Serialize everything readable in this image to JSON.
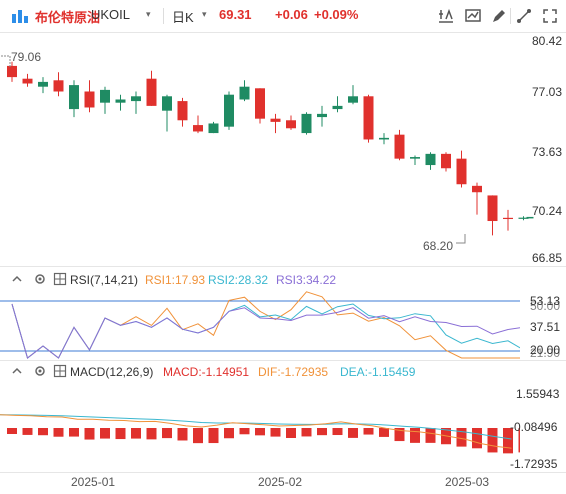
{
  "toolbar": {
    "symbol_name": "布伦特原油",
    "symbol_code": "UKOIL",
    "timeframe": "日K",
    "price": "69.31",
    "change": "+0.06",
    "change_pct": "+0.09%",
    "caret": "▾",
    "icons": [
      "logo-icon",
      "settings-icon",
      "layout-icon",
      "draw-icon",
      "drawing-tools-icon",
      "fullscreen-icon",
      "close-icon"
    ]
  },
  "main": {
    "y_ticks": [
      "80.42",
      "77.03",
      "73.63",
      "70.24",
      "66.85"
    ],
    "high_label": "79.06",
    "low_label": "68.20",
    "candles": [
      [
        78.8,
        79.06,
        77.8,
        78.1
      ],
      [
        78.0,
        78.3,
        77.5,
        77.7
      ],
      [
        77.5,
        78.1,
        77.1,
        77.8
      ],
      [
        77.9,
        78.4,
        76.9,
        77.2
      ],
      [
        76.1,
        77.9,
        75.6,
        77.6
      ],
      [
        77.2,
        77.9,
        75.9,
        76.2
      ],
      [
        76.5,
        77.5,
        75.8,
        77.3
      ],
      [
        76.5,
        77.0,
        76.0,
        76.7
      ],
      [
        76.6,
        77.2,
        75.8,
        76.9
      ],
      [
        78.0,
        78.5,
        76.3,
        76.3
      ],
      [
        76.0,
        77.0,
        74.7,
        76.9
      ],
      [
        76.6,
        76.8,
        75.0,
        75.4
      ],
      [
        75.1,
        75.7,
        74.6,
        74.7
      ],
      [
        74.6,
        75.3,
        74.6,
        75.2
      ],
      [
        75.0,
        77.2,
        74.8,
        77.0
      ],
      [
        76.7,
        77.9,
        76.6,
        77.5
      ],
      [
        77.4,
        77.4,
        75.2,
        75.5
      ],
      [
        75.5,
        75.8,
        74.6,
        75.3
      ],
      [
        75.4,
        75.7,
        74.8,
        74.9
      ],
      [
        74.6,
        75.9,
        74.5,
        75.8
      ],
      [
        75.6,
        76.3,
        75.0,
        75.8
      ],
      [
        76.1,
        76.9,
        75.9,
        76.3
      ],
      [
        76.5,
        77.6,
        76.4,
        76.9
      ],
      [
        76.9,
        77.0,
        74.0,
        74.2
      ],
      [
        74.2,
        74.6,
        73.9,
        74.3
      ],
      [
        74.5,
        74.8,
        72.9,
        73.0
      ],
      [
        73.0,
        73.2,
        72.6,
        73.1
      ],
      [
        72.6,
        73.4,
        72.3,
        73.3
      ],
      [
        73.3,
        73.4,
        72.2,
        72.4
      ],
      [
        73.0,
        73.5,
        71.2,
        71.4
      ],
      [
        71.3,
        71.5,
        69.5,
        70.9
      ],
      [
        70.7,
        70.7,
        68.2,
        69.1
      ],
      [
        69.3,
        69.8,
        68.5,
        69.25
      ],
      [
        69.25,
        69.4,
        69.15,
        69.31
      ]
    ]
  },
  "rsi": {
    "label": "RSI(7,14,21)",
    "rsi1": "RSI1:17.93",
    "rsi2": "RSI2:28.32",
    "rsi3": "RSI3:34.22",
    "tick_top": "53.13",
    "tick_top2": "50.00",
    "tick_mid": "37.51",
    "tick_low": "20.00",
    "tick_low2": "21.90",
    "colors": {
      "rsi1": "#f0923a",
      "rsi2": "#3ab7cf",
      "rsi3": "#8a6fd6"
    }
  },
  "macd": {
    "label": "MACD(12,26,9)",
    "macd": "MACD:-1.14951",
    "dif": "DIF:-1.72935",
    "dea": "DEA:-1.15459",
    "ticks": [
      "1.55943",
      "-0.08496",
      "-1.72935"
    ],
    "colors": {
      "dif": "#f0923a",
      "dea": "#3ab7cf",
      "hist": "#e0312d"
    }
  },
  "x_axis": [
    "2025-01",
    "2025-02",
    "2025-03"
  ]
}
